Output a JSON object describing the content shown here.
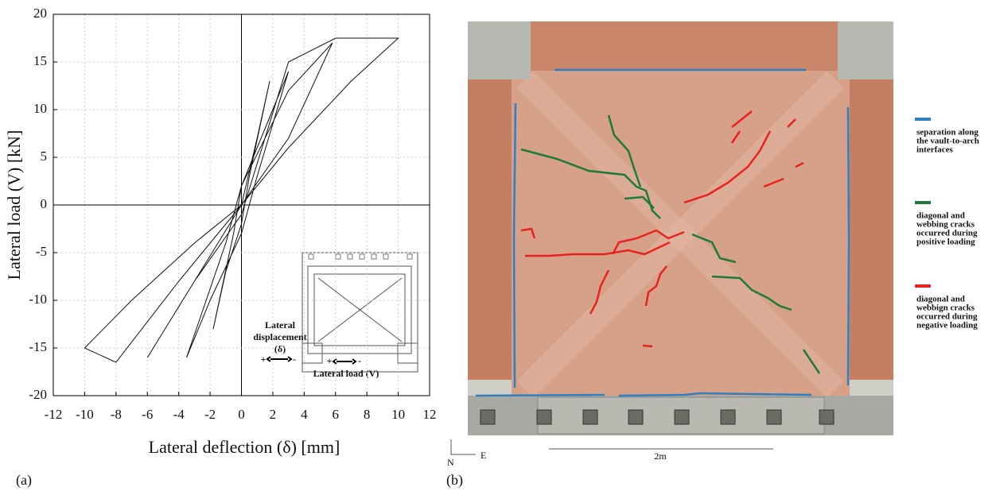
{
  "chart_data": {
    "type": "line",
    "xlabel": "Lateral deflection (δ) [mm]",
    "ylabel": "Lateral load (V) [kN]",
    "x": [
      0,
      1,
      1.8,
      0.5,
      0,
      -1,
      -1.8,
      -0.5,
      0,
      2,
      3,
      1,
      0,
      -2,
      -3.5,
      -1,
      0,
      3,
      5.8,
      3,
      0,
      -3,
      -6,
      -3,
      0,
      3,
      6,
      10,
      7,
      3,
      0,
      -3,
      -7,
      -10,
      -8,
      -4,
      0
    ],
    "values": [
      0,
      7,
      13,
      3,
      -2,
      -7,
      -13,
      -3,
      2,
      10,
      14,
      3,
      -3,
      -10,
      -16,
      -4,
      2,
      12,
      17,
      7,
      0,
      -8,
      -16,
      -8,
      -1,
      15,
      17.5,
      17.5,
      13,
      6,
      0,
      -4,
      -10,
      -15,
      -16.5,
      -8,
      0
    ],
    "color": "#111111",
    "xlim": [
      -12,
      12
    ],
    "xticks": [
      -12,
      -10,
      -8,
      -6,
      -4,
      -2,
      0,
      2,
      4,
      6,
      8,
      10,
      12
    ],
    "ylim": [
      -20,
      20
    ],
    "yticks": [
      -20,
      -15,
      -10,
      -5,
      0,
      5,
      10,
      15,
      20
    ],
    "grid": true
  },
  "inset": {
    "displacement": [
      "Lateral",
      "displacement",
      "(δ)"
    ],
    "plus": "+",
    "minus": "-",
    "load": "Lateral  load (V)"
  },
  "panel_labels": [
    "(a)",
    "(b)"
  ],
  "photo": {
    "north": "N",
    "east": "E",
    "scale": "2m",
    "legend": [
      {
        "color": "#2f7fc1",
        "lines": [
          "separation along",
          "the vault-to-arch",
          "interfaces"
        ]
      },
      {
        "color": "#1f7a3a",
        "lines": [
          "diagonal and",
          "webbing cracks",
          "occurred during",
          "positive loading"
        ]
      },
      {
        "color": "#e8231f",
        "lines": [
          "diagonal and",
          "webbign cracks",
          "occurred during",
          "negative loading"
        ]
      }
    ]
  }
}
